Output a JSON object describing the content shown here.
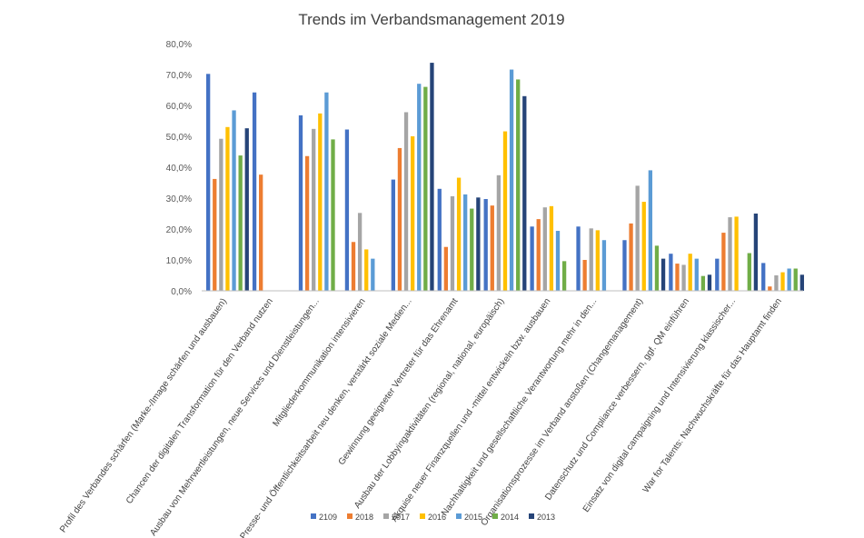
{
  "chart_data": {
    "type": "bar",
    "title": "Trends im Verbandsmanagement 2019",
    "xlabel": "",
    "ylabel": "",
    "ylim": [
      0,
      80
    ],
    "y_ticks": [
      0,
      10,
      20,
      30,
      40,
      50,
      60,
      70,
      80
    ],
    "y_tick_labels": [
      "0,0%",
      "10,0%",
      "20,0%",
      "30,0%",
      "40,0%",
      "50,0%",
      "60,0%",
      "70,0%",
      "80,0%"
    ],
    "grid": false,
    "legend_position": "bottom",
    "categories": [
      "Profil des Verbandes schärfen (Marke-/Image schärfen und ausbauen)",
      "Chancen der digitalen Transformation für den Verband nutzen",
      "Ausbau von Mehrwertleistungen, neue Services und Dienstleistungen...",
      "Mitgliederkommunikation intensivieren",
      "Presse- und Öffentlichkeitsarbeit neu denken, verstärkt soziale Medien...",
      "Gewinnung geeigneter Vertreter für das Ehrenamt",
      "Ausbau der Lobbyingaktivitäten (regional, national, europäisch)",
      "Akquise neuer Finanzquellen und -mittel entwickeln bzw. ausbauen",
      "Nachhaltigkeit und gesellschaftliche Verantwortung mehr in den...",
      "Organisationsprozesse im Verband anstoßen (Changemanagement)",
      "Datenschutz und Compliance verbessern, ggf. QM einführen",
      "Einsatz von digital campaigning und Intensivierung klassischer...",
      "War for Talents: Nachwuchskräfte für das Hauptamt finden"
    ],
    "series": [
      {
        "name": "2109",
        "color": "#4472c4",
        "values": [
          70.2,
          64.2,
          56.8,
          52.2,
          36.0,
          33.0,
          29.7,
          20.8,
          20.8,
          16.4,
          12.0,
          10.4,
          9.0
        ]
      },
      {
        "name": "2018",
        "color": "#ed7d31",
        "values": [
          36.2,
          37.6,
          43.6,
          15.8,
          46.2,
          14.2,
          27.6,
          23.2,
          10.0,
          21.8,
          8.8,
          18.8,
          1.4
        ]
      },
      {
        "name": "2017",
        "color": "#a5a5a5",
        "values": [
          49.2,
          null,
          52.4,
          25.2,
          57.8,
          30.6,
          37.4,
          27.0,
          20.2,
          34.0,
          8.4,
          23.8,
          5.0
        ]
      },
      {
        "name": "2016",
        "color": "#ffc000",
        "values": [
          53.0,
          null,
          57.4,
          13.4,
          50.0,
          36.6,
          51.6,
          27.4,
          19.6,
          28.8,
          12.0,
          24.0,
          6.0
        ]
      },
      {
        "name": "2015",
        "color": "#5b9bd5",
        "values": [
          58.4,
          null,
          64.2,
          10.4,
          67.0,
          31.2,
          71.6,
          19.4,
          16.4,
          39.0,
          10.4,
          null,
          7.2
        ]
      },
      {
        "name": "2014",
        "color": "#70ad47",
        "values": [
          43.8,
          null,
          49.0,
          null,
          66.0,
          26.6,
          68.4,
          9.6,
          null,
          14.6,
          4.8,
          12.2,
          7.2
        ]
      },
      {
        "name": "2013",
        "color": "#264478",
        "values": [
          52.6,
          null,
          null,
          null,
          73.8,
          30.2,
          63.0,
          null,
          null,
          10.4,
          5.2,
          25.0,
          5.2
        ]
      }
    ]
  }
}
